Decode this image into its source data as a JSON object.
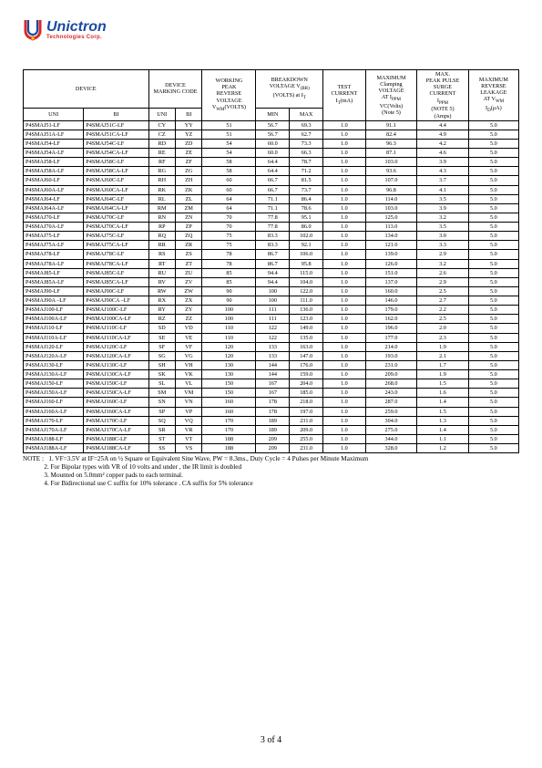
{
  "logo": {
    "name": "Unictron",
    "sub": "Technologies Corp."
  },
  "headers": {
    "device": "DEVICE",
    "marking": "DEVICE\nMARKING CODE",
    "working": "WORKING\nPEAK\nREVERSE\nVOLTAGE\nV",
    "working_sub": "WM",
    "working_tail": "(VOLTS)",
    "breakdown": "BREAKDOWN\nVOLTAGE V",
    "breakdown_sub": "(BR)",
    "breakdown_tail": "(VOLTS) at I",
    "breakdown_tail_sub": "T",
    "test": "TEST\nCURRENT\nI",
    "test_sub": "T",
    "test_tail": "(mA)",
    "clamp": "MAXIMUM\nClamping\nVOLTAGE\nAT I",
    "clamp_sub": "PPM",
    "clamp_tail": "VC(Volts)\n(Note 5)",
    "peak": "MAX.\nPEAK PULSE\nSURGE\nCURRENT\nI",
    "peak_sub": "PPM",
    "peak_tail": "(NOTE 5)\n(Amps)",
    "leak": "MAXIMUM\nREVERSE\nLEAKAGE\nAT V",
    "leak_sub": "WM",
    "leak_tail": "I",
    "leak_tail_sub": "D",
    "leak_tail2": "(μA)",
    "uni": "UNI",
    "bi": "BI",
    "min": "MIN",
    "max": "MAX"
  },
  "colwidths": [
    "54",
    "58",
    "24",
    "24",
    "48",
    "30",
    "30",
    "38",
    "46",
    "46",
    "45"
  ],
  "rows": [
    [
      "P4SMAJ51-LF",
      "P4SMAJ51C-LF",
      "CY",
      "YY",
      "51",
      "56.7",
      "69.3",
      "1.0",
      "91.1",
      "4.4",
      "5.0"
    ],
    [
      "P4SMAJ51A-LF",
      "P4SMAJ51CA-LF",
      "CZ",
      "YZ",
      "51",
      "56.7",
      "62.7",
      "1.0",
      "82.4",
      "4.9",
      "5.0"
    ],
    [
      "P4SMAJ54-LF",
      "P4SMAJ54C-LF",
      "RD",
      "ZD",
      "54",
      "60.0",
      "73.3",
      "1.0",
      "96.3",
      "4.2",
      "5.0"
    ],
    [
      "P4SMAJ54A-LF",
      "P4SMAJ54CA-LF",
      "RE",
      "ZE",
      "54",
      "60.0",
      "66.3",
      "1.0",
      "87.1",
      "4.6",
      "5.0"
    ],
    [
      "P4SMAJ58-LF",
      "P4SMAJ58C-LF",
      "RF",
      "ZF",
      "58",
      "64.4",
      "78.7",
      "1.0",
      "103.0",
      "3.9",
      "5.0"
    ],
    [
      "P4SMAJ58A-LF",
      "P4SMAJ58CA-LF",
      "RG",
      "ZG",
      "58",
      "64.4",
      "71.2",
      "1.0",
      "93.6",
      "4.3",
      "5.0"
    ],
    [
      "P4SMAJ60-LF",
      "P4SMAJ60C-LF",
      "RH",
      "ZH",
      "60",
      "66.7",
      "81.5",
      "1.0",
      "107.0",
      "3.7",
      "5.0"
    ],
    [
      "P4SMAJ60A-LF",
      "P4SMAJ60CA-LF",
      "RK",
      "ZK",
      "60",
      "66.7",
      "73.7",
      "1.0",
      "96.8",
      "4.1",
      "5.0"
    ],
    [
      "P4SMAJ64-LF",
      "P4SMAJ64C-LF",
      "RL",
      "ZL",
      "64",
      "71.1",
      "86.4",
      "1.0",
      "114.0",
      "3.5",
      "5.0"
    ],
    [
      "P4SMAJ64A-LF",
      "P4SMAJ64CA-LF",
      "RM",
      "ZM",
      "64",
      "71.1",
      "78.6",
      "1.0",
      "103.0",
      "3.9",
      "5.0"
    ],
    [
      "P4SMAJ70-LF",
      "P4SMAJ70C-LF",
      "RN",
      "ZN",
      "70",
      "77.8",
      "95.1",
      "1.0",
      "125.0",
      "3.2",
      "5.0"
    ],
    [
      "P4SMAJ70A-LF",
      "P4SMAJ70CA-LF",
      "RP",
      "ZP",
      "70",
      "77.8",
      "86.0",
      "1.0",
      "113.0",
      "3.5",
      "5.0"
    ],
    [
      "P4SMAJ75-LF",
      "P4SMAJ75C-LF",
      "RQ",
      "ZQ",
      "75",
      "83.3",
      "102.0",
      "1.0",
      "134.0",
      "3.0",
      "5.0"
    ],
    [
      "P4SMAJ75A-LF",
      "P4SMAJ75CA-LF",
      "RR",
      "ZR",
      "75",
      "83.3",
      "92.1",
      "1.0",
      "121.0",
      "3.3",
      "5.0"
    ],
    [
      "P4SMAJ78-LF",
      "P4SMAJ78C-LF",
      "RS",
      "ZS",
      "78",
      "86.7",
      "106.0",
      "1.0",
      "139.0",
      "2.9",
      "5.0"
    ],
    [
      "P4SMAJ78A-LF",
      "P4SMAJ78CA-LF",
      "RT",
      "ZT",
      "78",
      "86.7",
      "95.8",
      "1.0",
      "126.0",
      "3.2",
      "5.0"
    ],
    [
      "P4SMAJ85-LF",
      "P4SMAJ85C-LF",
      "RU",
      "ZU",
      "85",
      "94.4",
      "115.0",
      "1.0",
      "151.0",
      "2.6",
      "5.0"
    ],
    [
      "P4SMAJ85A-LF",
      "P4SMAJ85CA-LF",
      "RV",
      "ZV",
      "85",
      "94.4",
      "104.0",
      "1.0",
      "137.0",
      "2.9",
      "5.0"
    ],
    [
      "P4SMAJ90-LF",
      "P4SMAJ90C-LF",
      "RW",
      "ZW",
      "90",
      "100",
      "122.0",
      "1.0",
      "160.0",
      "2.5",
      "5.0"
    ],
    [
      "P4SMAJ90A –LF",
      "P4SMAJ90CA –LF",
      "RX",
      "ZX",
      "90",
      "100",
      "111.0",
      "1.0",
      "146.0",
      "2.7",
      "5.0"
    ],
    [
      "P4SMAJ100-LF",
      "P4SMAJ100C-LF",
      "RY",
      "ZY",
      "100",
      "111",
      "136.0",
      "1.0",
      "179.0",
      "2.2",
      "5.0"
    ],
    [
      "P4SMAJ100A-LF",
      "P4SMAJ100CA-LF",
      "RZ",
      "ZZ",
      "100",
      "111",
      "123.0",
      "1.0",
      "162.0",
      "2.5",
      "5.0"
    ],
    [
      "P4SMAJ110-LF",
      "P4SMAJ110C-LF",
      "SD",
      "VD",
      "110",
      "122",
      "149.0",
      "1.0",
      "196.0",
      "2.0",
      "5.0"
    ],
    [
      "P4SMAJ110A-LF",
      "P4SMAJ110CA-LF",
      "SE",
      "VE",
      "110",
      "122",
      "135.0",
      "1.0",
      "177.0",
      "2.3",
      "5.0"
    ],
    [
      "P4SMAJ120-LF",
      "P4SMAJ120C-LF",
      "SF",
      "VF",
      "120",
      "133",
      "163.0",
      "1.0",
      "214.0",
      "1.9",
      "5.0"
    ],
    [
      "P4SMAJ120A-LF",
      "P4SMAJ120CA-LF",
      "SG",
      "VG",
      "120",
      "133",
      "147.0",
      "1.0",
      "193.0",
      "2.1",
      "5.0"
    ],
    [
      "P4SMAJ130-LF",
      "P4SMAJ130C-LF",
      "SH",
      "VH",
      "130",
      "144",
      "176.0",
      "1.0",
      "231.0",
      "1.7",
      "5.0"
    ],
    [
      "P4SMAJ130A-LF",
      "P4SMAJ130CA-LF",
      "SK",
      "VK",
      "130",
      "144",
      "159.0",
      "1.0",
      "209.0",
      "1.9",
      "5.0"
    ],
    [
      "P4SMAJ150-LF",
      "P4SMAJ150C-LF",
      "SL",
      "VL",
      "150",
      "167",
      "204.0",
      "1.0",
      "268.0",
      "1.5",
      "5.0"
    ],
    [
      "P4SMAJ150A-LF",
      "P4SMAJ150CA-LF",
      "SM",
      "VM",
      "150",
      "167",
      "185.0",
      "1.0",
      "243.0",
      "1.6",
      "5.0"
    ],
    [
      "P4SMAJ160-LF",
      "P4SMAJ160C-LF",
      "SN",
      "VN",
      "160",
      "178",
      "218.0",
      "1.0",
      "287.0",
      "1.4",
      "5.0"
    ],
    [
      "P4SMAJ160A-LF",
      "P4SMAJ160CA-LF",
      "SP",
      "VP",
      "160",
      "178",
      "197.0",
      "1.0",
      "259.0",
      "1.5",
      "5.0"
    ],
    [
      "P4SMAJ170-LF",
      "P4SMAJ170C-LF",
      "SQ",
      "VQ",
      "170",
      "189",
      "231.0",
      "1.0",
      "304.0",
      "1.3",
      "5.0"
    ],
    [
      "P4SMAJ170A-LF",
      "P4SMAJ170CA-LF",
      "SR",
      "VR",
      "170",
      "189",
      "209.0",
      "1.0",
      "275.0",
      "1.4",
      "5.0"
    ],
    [
      "P4SMAJ188-LF",
      "P4SMAJ188C-LF",
      "ST",
      "VT",
      "188",
      "209",
      "255.0",
      "1.0",
      "344.0",
      "1.1",
      "5.0"
    ],
    [
      "P4SMAJ188A-LF",
      "P4SMAJ188CA-LF",
      "SS",
      "VS",
      "188",
      "209",
      "231.0",
      "1.0",
      "328.0",
      "1.2",
      "5.0"
    ]
  ],
  "notes": {
    "label": "NOTE :",
    "n1": "1. VF=3.5V at IF=25A on ½ Square or Equivalent Sine Wave, PW = 8.3ms., Duty Cycle = 4 Pulses per Minute Maximum",
    "n2": "2. For Bipolar types with VR of 10 volts and under , the IR limit is doubled",
    "n3": "3. Mounted on 5.0mm² copper pads to each terminal.",
    "n4": "4. For Bidirectional use C suffix for 10%   tolerance . CA suffix for 5%   tolerance"
  },
  "pagenum": "3 of 4"
}
